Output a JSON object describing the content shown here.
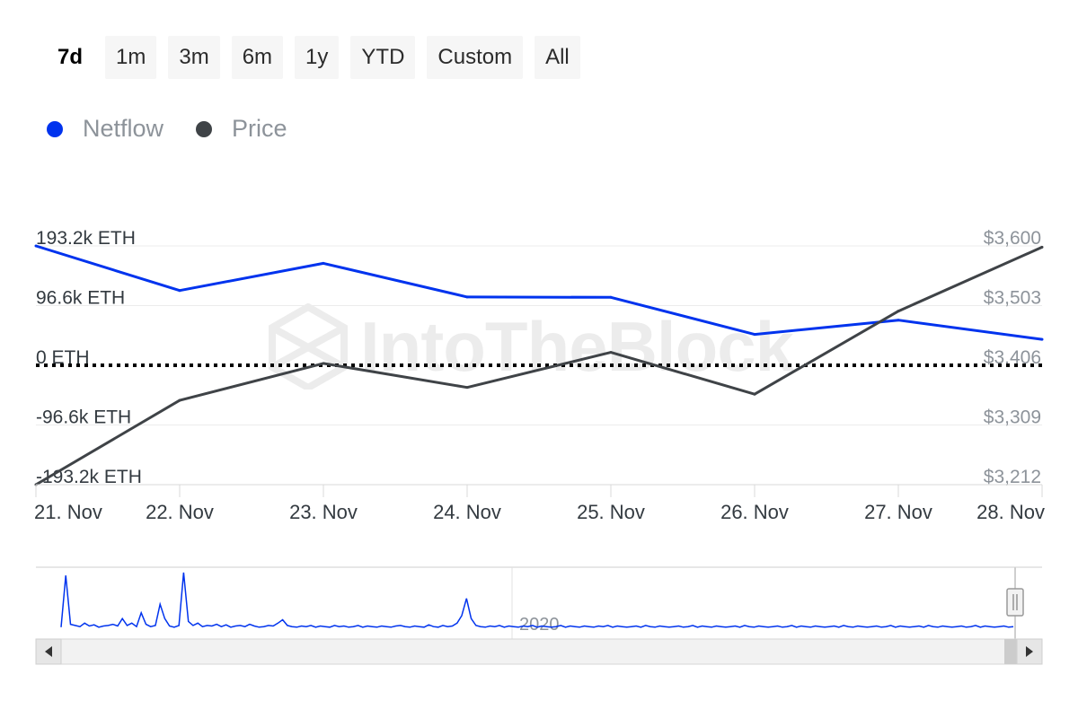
{
  "range_selector": {
    "buttons": [
      "7d",
      "1m",
      "3m",
      "6m",
      "1y",
      "YTD",
      "Custom",
      "All"
    ],
    "active": "7d"
  },
  "legend": [
    {
      "label": "Netflow",
      "color": "#0033ee"
    },
    {
      "label": "Price",
      "color": "#3f4347"
    }
  ],
  "watermark": {
    "text": "IntoTheBlock"
  },
  "chart_data": {
    "type": "line",
    "categories": [
      "21. Nov",
      "22. Nov",
      "23. Nov",
      "24. Nov",
      "25. Nov",
      "26. Nov",
      "27. Nov",
      "28. Nov"
    ],
    "series": [
      {
        "name": "Netflow",
        "axis": "left",
        "color": "#0033ee",
        "values": [
          193200,
          121000,
          165000,
          110500,
          110000,
          50000,
          73000,
          42000
        ]
      },
      {
        "name": "Price",
        "axis": "right",
        "color": "#3f4347",
        "values": [
          3212,
          3349,
          3409,
          3370,
          3427,
          3359,
          3494,
          3598
        ]
      }
    ],
    "y_left": {
      "ticks": [
        193200,
        96600,
        0,
        -96600,
        -193200
      ],
      "tick_labels": [
        "193.2k ETH",
        "96.6k ETH",
        "0 ETH",
        "-96.6k ETH",
        "-193.2k ETH"
      ],
      "ylim": [
        -193200,
        193200
      ]
    },
    "y_right": {
      "ticks": [
        3600,
        3503,
        3406,
        3309,
        3212
      ],
      "tick_labels": [
        "$3,600",
        "$3,503",
        "$3,406",
        "$3,309",
        "$3,212"
      ],
      "ylim": [
        3212,
        3600
      ]
    },
    "zero_line": {
      "value": 0,
      "style": "dotted"
    },
    "grid": true,
    "legend_position": "top-left",
    "navigator": {
      "label": "2020",
      "values": [
        0.05,
        0.95,
        0.1,
        0.08,
        0.06,
        0.12,
        0.07,
        0.09,
        0.05,
        0.07,
        0.08,
        0.1,
        0.07,
        0.2,
        0.08,
        0.12,
        0.06,
        0.3,
        0.1,
        0.06,
        0.08,
        0.45,
        0.2,
        0.07,
        0.05,
        0.08,
        1.0,
        0.15,
        0.08,
        0.12,
        0.06,
        0.08,
        0.07,
        0.1,
        0.06,
        0.09,
        0.05,
        0.07,
        0.08,
        0.06,
        0.1,
        0.07,
        0.05,
        0.06,
        0.08,
        0.07,
        0.12,
        0.18,
        0.08,
        0.06,
        0.05,
        0.07,
        0.06,
        0.08,
        0.05,
        0.07,
        0.06,
        0.05,
        0.08,
        0.06,
        0.07,
        0.05,
        0.06,
        0.08,
        0.05,
        0.07,
        0.06,
        0.05,
        0.07,
        0.06,
        0.05,
        0.07,
        0.08,
        0.06,
        0.05,
        0.07,
        0.06,
        0.05,
        0.09,
        0.06,
        0.05,
        0.08,
        0.06,
        0.07,
        0.12,
        0.25,
        0.55,
        0.2,
        0.08,
        0.06,
        0.05,
        0.07,
        0.06,
        0.08,
        0.05,
        0.07,
        0.06,
        0.05,
        0.07,
        0.06,
        0.08,
        0.05,
        0.07,
        0.06,
        0.05,
        0.06,
        0.08,
        0.05,
        0.07,
        0.06,
        0.05,
        0.07,
        0.06,
        0.05,
        0.07,
        0.06,
        0.08,
        0.05,
        0.07,
        0.06,
        0.05,
        0.06,
        0.07,
        0.05,
        0.08,
        0.06,
        0.05,
        0.07,
        0.06,
        0.05,
        0.06,
        0.07,
        0.05,
        0.06,
        0.08,
        0.05,
        0.07,
        0.06,
        0.05,
        0.07,
        0.06,
        0.05,
        0.06,
        0.07,
        0.05,
        0.08,
        0.06,
        0.05,
        0.07,
        0.06,
        0.05,
        0.06,
        0.07,
        0.05,
        0.06,
        0.08,
        0.05,
        0.07,
        0.06,
        0.05,
        0.07,
        0.06,
        0.05,
        0.06,
        0.07,
        0.05,
        0.08,
        0.06,
        0.05,
        0.07,
        0.06,
        0.05,
        0.06,
        0.07,
        0.05,
        0.06,
        0.08,
        0.05,
        0.07,
        0.06,
        0.05,
        0.06,
        0.07,
        0.05,
        0.08,
        0.06,
        0.05,
        0.07,
        0.06,
        0.05,
        0.06,
        0.07,
        0.05,
        0.06,
        0.08,
        0.05,
        0.07,
        0.06,
        0.05,
        0.06,
        0.07,
        0.05,
        0.06
      ]
    }
  }
}
